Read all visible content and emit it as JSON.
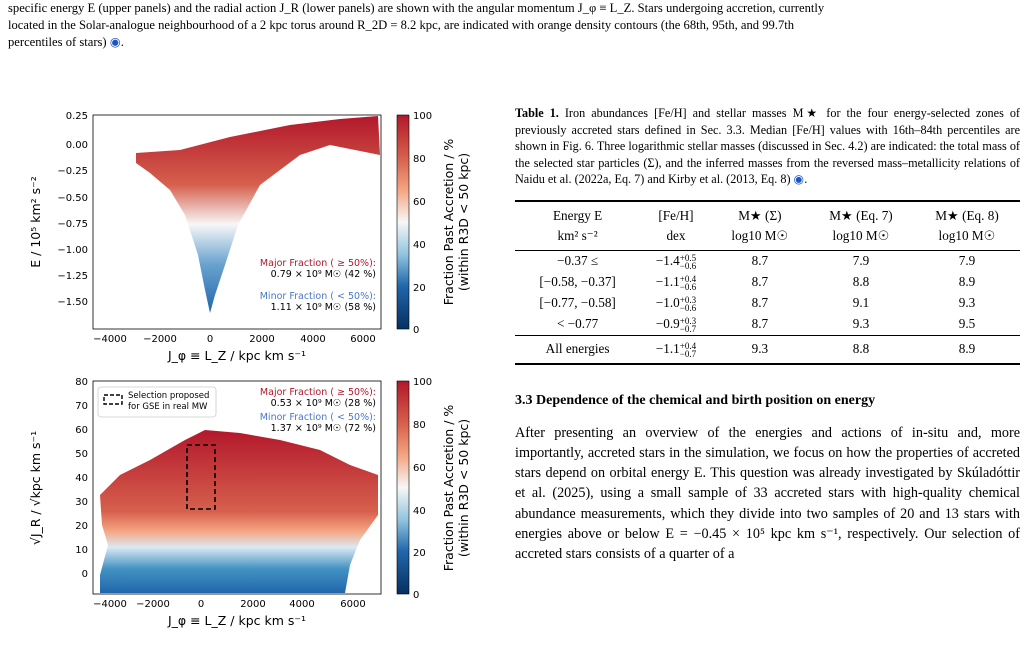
{
  "top_caption": {
    "line1": "specific energy E (upper panels) and the radial action J_R (lower panels) are shown with the angular momentum J_φ ≡ L_Z. Stars undergoing accretion, currently",
    "line2": "located in the Solar-analogue neighbourhood of a 2 kpc torus around R_2D = 8.2 kpc, are indicated with orange density contours (the 68th, 95th, and 99.7th",
    "line3": "percentiles of stars)"
  },
  "figure": {
    "top_panel": {
      "ylabel": "E / 10⁵ km² s⁻²",
      "xlabel": "J_φ ≡ L_Z / kpc km s⁻¹",
      "yticks": [
        "0.25",
        "0.00",
        "−0.25",
        "−0.50",
        "−0.75",
        "−1.00",
        "−1.25",
        "−1.50"
      ],
      "xticks": [
        "−4000",
        "−2000",
        "0",
        "2000",
        "4000",
        "6000"
      ],
      "major_label": "Major Fraction ( ≥ 50%):",
      "major_value": "0.79 × 10⁹ M☉ (42 %)",
      "minor_label": "Minor Fraction ( < 50%):",
      "minor_value": "1.11 × 10⁹ M☉ (58 %)",
      "colorbar_ticks": [
        "100",
        "80",
        "60",
        "40",
        "20",
        "0"
      ],
      "colorbar_label1": "Fraction Past Accretion / %",
      "colorbar_label2": "(within R3D < 50 kpc)"
    },
    "bottom_panel": {
      "ylabel": "√J_R / √kpc km s⁻¹",
      "xlabel": "J_φ ≡ L_Z / kpc km s⁻¹",
      "yticks": [
        "80",
        "70",
        "60",
        "50",
        "40",
        "30",
        "20",
        "10",
        "0"
      ],
      "xticks": [
        "−4000",
        "−2000",
        "0",
        "2000",
        "4000",
        "6000"
      ],
      "legend_line1": "Selection proposed",
      "legend_line2": "for GSE in real MW",
      "major_label": "Major Fraction ( ≥ 50%):",
      "major_value": "0.53 × 10⁹ M☉ (28 %)",
      "minor_label": "Minor Fraction ( < 50%):",
      "minor_value": "1.37 × 10⁹ M☉ (72 %)",
      "colorbar_ticks": [
        "100",
        "80",
        "60",
        "40",
        "20",
        "0"
      ],
      "colorbar_label1": "Fraction Past Accretion / %",
      "colorbar_label2": "(within R3D < 50 kpc)"
    }
  },
  "table": {
    "caption_bold": "Table 1.",
    "caption": "Iron abundances [Fe/H] and stellar masses M★ for the four energy-selected zones of previously accreted stars defined in Sec. 3.3. Median [Fe/H] values with 16th–84th percentiles are shown in Fig. 6. Three logarithmic stellar masses (discussed in Sec. 4.2) are indicated: the total mass of the selected star particles (Σ), and the inferred masses from the reversed mass–metallicity relations of Naidu et al. (2022a, Eq. 7) and Kirby et al. (2013, Eq. 8)",
    "headers": [
      "Energy E",
      "[Fe/H]",
      "M★ (Σ)",
      "M★ (Eq. 7)",
      "M★ (Eq. 8)"
    ],
    "units": [
      "km² s⁻²",
      "dex",
      "log10 M☉",
      "log10 M☉",
      "log10 M☉"
    ],
    "rows": [
      {
        "energy": "−0.37 ≤",
        "feh": "−1.4",
        "up": "+0.5",
        "lo": "−0.6",
        "s": "8.7",
        "e7": "7.9",
        "e8": "7.9"
      },
      {
        "energy": "[−0.58, −0.37]",
        "feh": "−1.1",
        "up": "+0.4",
        "lo": "−0.6",
        "s": "8.7",
        "e7": "8.8",
        "e8": "8.9"
      },
      {
        "energy": "[−0.77, −0.58]",
        "feh": "−1.0",
        "up": "+0.3",
        "lo": "−0.6",
        "s": "8.7",
        "e7": "9.1",
        "e8": "9.3"
      },
      {
        "energy": "< −0.77",
        "feh": "−0.9",
        "up": "+0.3",
        "lo": "−0.7",
        "s": "8.7",
        "e7": "9.3",
        "e8": "9.5"
      },
      {
        "energy": "All energies",
        "feh": "−1.1",
        "up": "+0.4",
        "lo": "−0.7",
        "s": "9.3",
        "e7": "8.8",
        "e8": "8.9"
      }
    ]
  },
  "section": {
    "title": "3.3 Dependence of the chemical and birth position on energy",
    "body": "After presenting an overview of the energies and actions of in-situ and, more importantly, accreted stars in the simulation, we focus on how the properties of accreted stars depend on orbital energy E. This question was already investigated by Skúladóttir et al. (2025), using a small sample of 33 accreted stars with high-quality chemical abundance measurements, which they divide into two samples of 20 and 13 stars with energies above or below E = −0.45 × 10⁵ kpc km s⁻¹, respectively. Our selection of accreted stars consists of a quarter of a"
  },
  "colors": {
    "red": "#b2182b",
    "blue": "#2166ac",
    "white": "#f7f7f7",
    "link": "#1a55c8"
  }
}
